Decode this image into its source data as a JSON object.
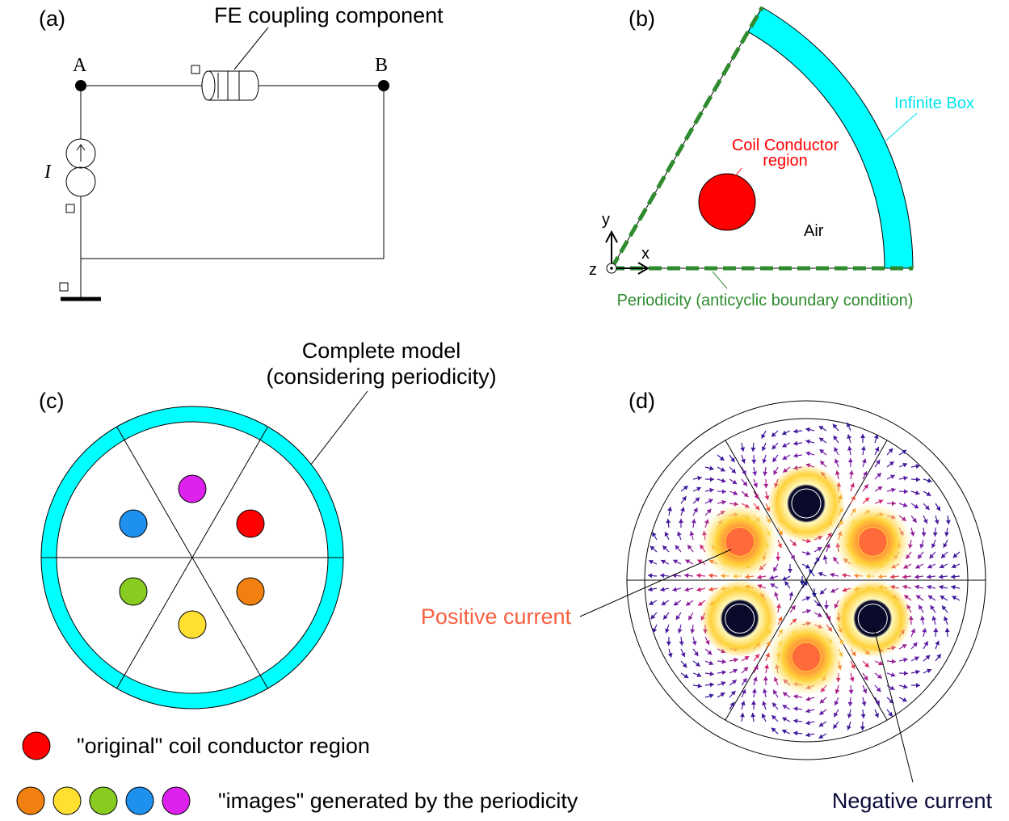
{
  "panels": {
    "a": {
      "label": "(a)",
      "component": "FE coupling component",
      "node_a": "A",
      "node_b": "B",
      "source": "I"
    },
    "b": {
      "label": "(b)",
      "infinite_box": "Infinite Box",
      "coil": [
        "Coil Conductor",
        "region"
      ],
      "air": "Air",
      "axes": {
        "x": "x",
        "y": "y",
        "z": "z"
      },
      "periodicity": "Periodicity (anticyclic boundary condition)"
    },
    "c": {
      "label": "(c)",
      "complete_model": [
        "Complete model",
        "(considering periodicity)"
      ]
    },
    "d": {
      "label": "(d)",
      "positive": "Positive current",
      "negative": "Negative current"
    }
  },
  "legend": {
    "original": "\"original\" coil conductor region",
    "images": "\"images\" generated by the periodicity"
  }
}
